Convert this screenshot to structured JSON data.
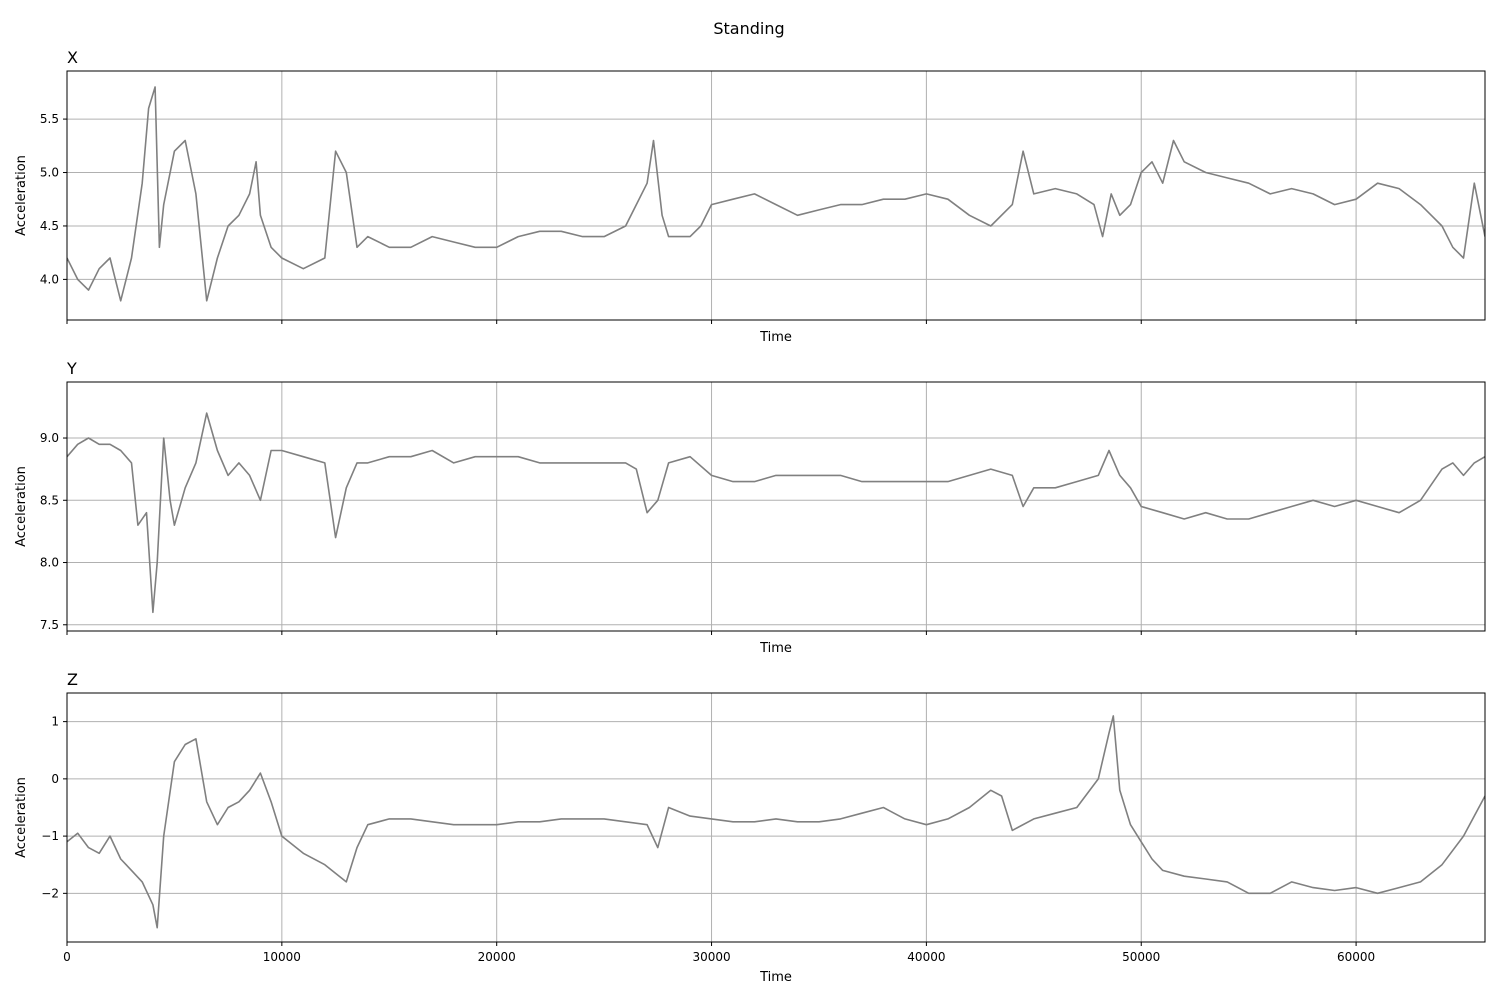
{
  "figure": {
    "title": "Standing"
  },
  "style": {
    "line_color": "#808080",
    "grid_color": "#b0b0b0"
  },
  "chart_data": [
    {
      "type": "line",
      "title": "X",
      "xlabel": "Time",
      "ylabel": "Acceleration",
      "xlim": [
        0,
        66000
      ],
      "ylim": [
        3.62,
        5.95
      ],
      "xticks": [
        0,
        10000,
        20000,
        30000,
        40000,
        50000,
        60000
      ],
      "xticklabels": [],
      "yticks": [
        4.0,
        4.5,
        5.0,
        5.5
      ],
      "yticklabels": [
        "4.0",
        "4.5",
        "5.0",
        "5.5"
      ],
      "grid": true,
      "x": [
        0,
        500,
        1000,
        1500,
        2000,
        2500,
        3000,
        3500,
        3800,
        4100,
        4300,
        4500,
        5000,
        5500,
        6000,
        6500,
        7000,
        7500,
        8000,
        8500,
        8800,
        9000,
        9500,
        10000,
        11000,
        12000,
        12500,
        13000,
        13500,
        14000,
        15000,
        16000,
        17000,
        18000,
        19000,
        20000,
        21000,
        22000,
        23000,
        24000,
        25000,
        26000,
        27000,
        27300,
        27700,
        28000,
        29000,
        29500,
        30000,
        31000,
        32000,
        33000,
        34000,
        35000,
        36000,
        37000,
        38000,
        39000,
        40000,
        41000,
        42000,
        43000,
        44000,
        44500,
        45000,
        46000,
        47000,
        47800,
        48200,
        48600,
        49000,
        49500,
        50000,
        50500,
        51000,
        51500,
        52000,
        53000,
        54000,
        55000,
        56000,
        57000,
        58000,
        59000,
        60000,
        61000,
        62000,
        63000,
        63500,
        64000,
        64500,
        65000,
        65500,
        66000
      ],
      "y": [
        4.2,
        4.0,
        3.9,
        4.1,
        4.2,
        3.8,
        4.2,
        4.9,
        5.6,
        5.8,
        4.3,
        4.7,
        5.2,
        5.3,
        4.8,
        3.8,
        4.2,
        4.5,
        4.6,
        4.8,
        5.1,
        4.6,
        4.3,
        4.2,
        4.1,
        4.2,
        5.2,
        5.0,
        4.3,
        4.4,
        4.3,
        4.3,
        4.4,
        4.35,
        4.3,
        4.3,
        4.4,
        4.45,
        4.45,
        4.4,
        4.4,
        4.5,
        4.9,
        5.3,
        4.6,
        4.4,
        4.4,
        4.5,
        4.7,
        4.75,
        4.8,
        4.7,
        4.6,
        4.65,
        4.7,
        4.7,
        4.75,
        4.75,
        4.8,
        4.75,
        4.6,
        4.5,
        4.7,
        5.2,
        4.8,
        4.85,
        4.8,
        4.7,
        4.4,
        4.8,
        4.6,
        4.7,
        5.0,
        5.1,
        4.9,
        5.3,
        5.1,
        5.0,
        4.95,
        4.9,
        4.8,
        4.85,
        4.8,
        4.7,
        4.75,
        4.9,
        4.85,
        4.7,
        4.6,
        4.5,
        4.3,
        4.2,
        4.9,
        4.4
      ]
    },
    {
      "type": "line",
      "title": "Y",
      "xlabel": "Time",
      "ylabel": "Acceleration",
      "xlim": [
        0,
        66000
      ],
      "ylim": [
        7.45,
        9.45
      ],
      "xticks": [
        0,
        10000,
        20000,
        30000,
        40000,
        50000,
        60000
      ],
      "xticklabels": [],
      "yticks": [
        7.5,
        8.0,
        8.5,
        9.0
      ],
      "yticklabels": [
        "7.5",
        "8.0",
        "8.5",
        "9.0"
      ],
      "grid": true,
      "x": [
        0,
        500,
        1000,
        1500,
        2000,
        2500,
        3000,
        3300,
        3700,
        4000,
        4200,
        4500,
        4800,
        5000,
        5500,
        6000,
        6500,
        7000,
        7500,
        8000,
        8500,
        9000,
        9500,
        10000,
        11000,
        12000,
        12500,
        13000,
        13500,
        14000,
        15000,
        16000,
        17000,
        18000,
        19000,
        20000,
        21000,
        22000,
        23000,
        24000,
        25000,
        26000,
        26500,
        27000,
        27500,
        28000,
        29000,
        30000,
        31000,
        32000,
        33000,
        34000,
        35000,
        36000,
        37000,
        38000,
        39000,
        40000,
        41000,
        42000,
        43000,
        44000,
        44500,
        45000,
        46000,
        47000,
        48000,
        48500,
        49000,
        49500,
        50000,
        51000,
        52000,
        53000,
        54000,
        55000,
        56000,
        57000,
        58000,
        59000,
        60000,
        61000,
        62000,
        63000,
        64000,
        64500,
        65000,
        65500,
        66000
      ],
      "y": [
        8.85,
        8.95,
        9.0,
        8.95,
        8.95,
        8.9,
        8.8,
        8.3,
        8.4,
        7.6,
        8.0,
        9.0,
        8.5,
        8.3,
        8.6,
        8.8,
        9.2,
        8.9,
        8.7,
        8.8,
        8.7,
        8.5,
        8.9,
        8.9,
        8.85,
        8.8,
        8.2,
        8.6,
        8.8,
        8.8,
        8.85,
        8.85,
        8.9,
        8.8,
        8.85,
        8.85,
        8.85,
        8.8,
        8.8,
        8.8,
        8.8,
        8.8,
        8.75,
        8.4,
        8.5,
        8.8,
        8.85,
        8.7,
        8.65,
        8.65,
        8.7,
        8.7,
        8.7,
        8.7,
        8.65,
        8.65,
        8.65,
        8.65,
        8.65,
        8.7,
        8.75,
        8.7,
        8.45,
        8.6,
        8.6,
        8.65,
        8.7,
        8.9,
        8.7,
        8.6,
        8.45,
        8.4,
        8.35,
        8.4,
        8.35,
        8.35,
        8.4,
        8.45,
        8.5,
        8.45,
        8.5,
        8.45,
        8.4,
        8.5,
        8.75,
        8.8,
        8.7,
        8.8,
        8.85
      ]
    },
    {
      "type": "line",
      "title": "Z",
      "xlabel": "Time",
      "ylabel": "Acceleration",
      "xlim": [
        0,
        66000
      ],
      "ylim": [
        -2.85,
        1.5
      ],
      "xticks": [
        0,
        10000,
        20000,
        30000,
        40000,
        50000,
        60000
      ],
      "xticklabels": [
        "0",
        "10000",
        "20000",
        "30000",
        "40000",
        "50000",
        "60000"
      ],
      "yticks": [
        -2,
        -1,
        0,
        1
      ],
      "yticklabels": [
        "−2",
        "−1",
        "0",
        "1"
      ],
      "grid": true,
      "x": [
        0,
        500,
        1000,
        1500,
        2000,
        2500,
        3000,
        3500,
        4000,
        4200,
        4500,
        5000,
        5500,
        6000,
        6500,
        7000,
        7500,
        8000,
        8500,
        9000,
        9500,
        10000,
        11000,
        12000,
        13000,
        13500,
        14000,
        15000,
        16000,
        17000,
        18000,
        19000,
        20000,
        21000,
        22000,
        23000,
        24000,
        25000,
        26000,
        27000,
        27500,
        28000,
        29000,
        30000,
        31000,
        32000,
        33000,
        34000,
        35000,
        36000,
        37000,
        38000,
        39000,
        40000,
        41000,
        42000,
        43000,
        43500,
        44000,
        45000,
        46000,
        47000,
        48000,
        48500,
        48700,
        49000,
        49500,
        50000,
        50500,
        51000,
        52000,
        53000,
        54000,
        55000,
        56000,
        57000,
        58000,
        59000,
        60000,
        61000,
        62000,
        63000,
        64000,
        65000,
        66000
      ],
      "y": [
        -1.1,
        -0.95,
        -1.2,
        -1.3,
        -1.0,
        -1.4,
        -1.6,
        -1.8,
        -2.2,
        -2.6,
        -1.0,
        0.3,
        0.6,
        0.7,
        -0.4,
        -0.8,
        -0.5,
        -0.4,
        -0.2,
        0.1,
        -0.4,
        -1.0,
        -1.3,
        -1.5,
        -1.8,
        -1.2,
        -0.8,
        -0.7,
        -0.7,
        -0.75,
        -0.8,
        -0.8,
        -0.8,
        -0.75,
        -0.75,
        -0.7,
        -0.7,
        -0.7,
        -0.75,
        -0.8,
        -1.2,
        -0.5,
        -0.65,
        -0.7,
        -0.75,
        -0.75,
        -0.7,
        -0.75,
        -0.75,
        -0.7,
        -0.6,
        -0.5,
        -0.7,
        -0.8,
        -0.7,
        -0.5,
        -0.2,
        -0.3,
        -0.9,
        -0.7,
        -0.6,
        -0.5,
        0.0,
        0.8,
        1.1,
        -0.2,
        -0.8,
        -1.1,
        -1.4,
        -1.6,
        -1.7,
        -1.75,
        -1.8,
        -2.0,
        -2.0,
        -1.8,
        -1.9,
        -1.95,
        -1.9,
        -2.0,
        -1.9,
        -1.8,
        -1.5,
        -1.0,
        -0.3
      ]
    }
  ]
}
